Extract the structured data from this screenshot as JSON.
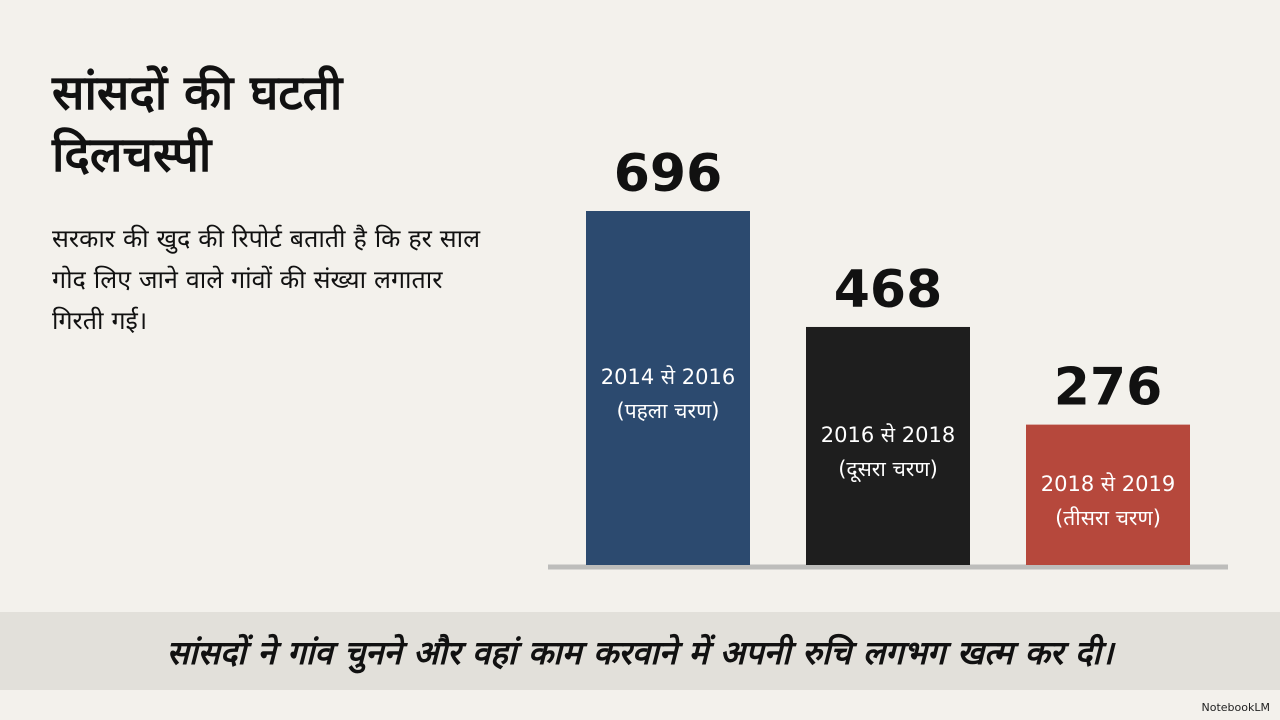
{
  "chart_data": {
    "type": "bar",
    "title": "सांसदों की घटती दिलचस्पी",
    "subtitle": "सरकार की खुद की रिपोर्ट बताती है कि हर साल गोद लिए जाने वाले गांवों की संख्या लगातार गिरती गई।",
    "categories": [
      "2014 से 2016",
      "2016 से 2018",
      "2018 से 2019"
    ],
    "category_notes": [
      "(पहला चरण)",
      "(दूसरा चरण)",
      "(तीसरा चरण)"
    ],
    "values": [
      696,
      468,
      276
    ],
    "colors": [
      "#2c4a6f",
      "#1e1e1e",
      "#b6483c"
    ],
    "annotation": "सांसदों ने गांव चुनने और वहां काम करवाने में अपनी रुचि लगभग खत्म कर दी।",
    "source": "NotebookLM"
  }
}
